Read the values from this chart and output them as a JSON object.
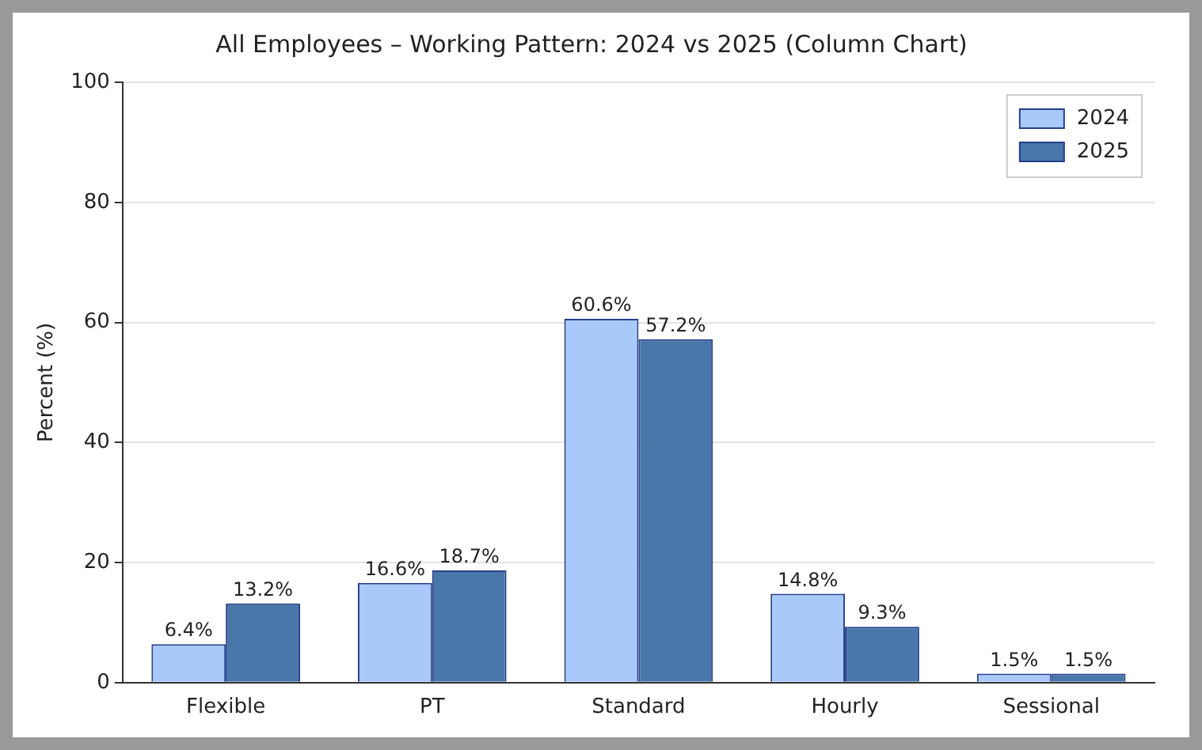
{
  "chart_data": {
    "type": "bar",
    "title": "All Employees – Working Pattern: 2024 vs 2025 (Column Chart)",
    "ylabel": "Percent (%)",
    "categories": [
      "Flexible",
      "PT",
      "Standard",
      "Hourly",
      "Sessional"
    ],
    "series": [
      {
        "name": "2024",
        "color": "#a9c9fb",
        "values": [
          6.4,
          16.6,
          60.6,
          14.8,
          1.5
        ],
        "value_labels": [
          "6.4%",
          "16.6%",
          "60.6%",
          "14.8%",
          "1.5%"
        ]
      },
      {
        "name": "2025",
        "color": "#4a77aa",
        "values": [
          13.2,
          18.7,
          57.2,
          9.3,
          1.5
        ],
        "value_labels": [
          "13.2%",
          "18.7%",
          "57.2%",
          "9.3%",
          "1.5%"
        ]
      }
    ],
    "ylim": [
      0,
      100
    ],
    "yticks": [
      0,
      20,
      40,
      60,
      80,
      100
    ],
    "grid": "y",
    "legend": "top right"
  }
}
